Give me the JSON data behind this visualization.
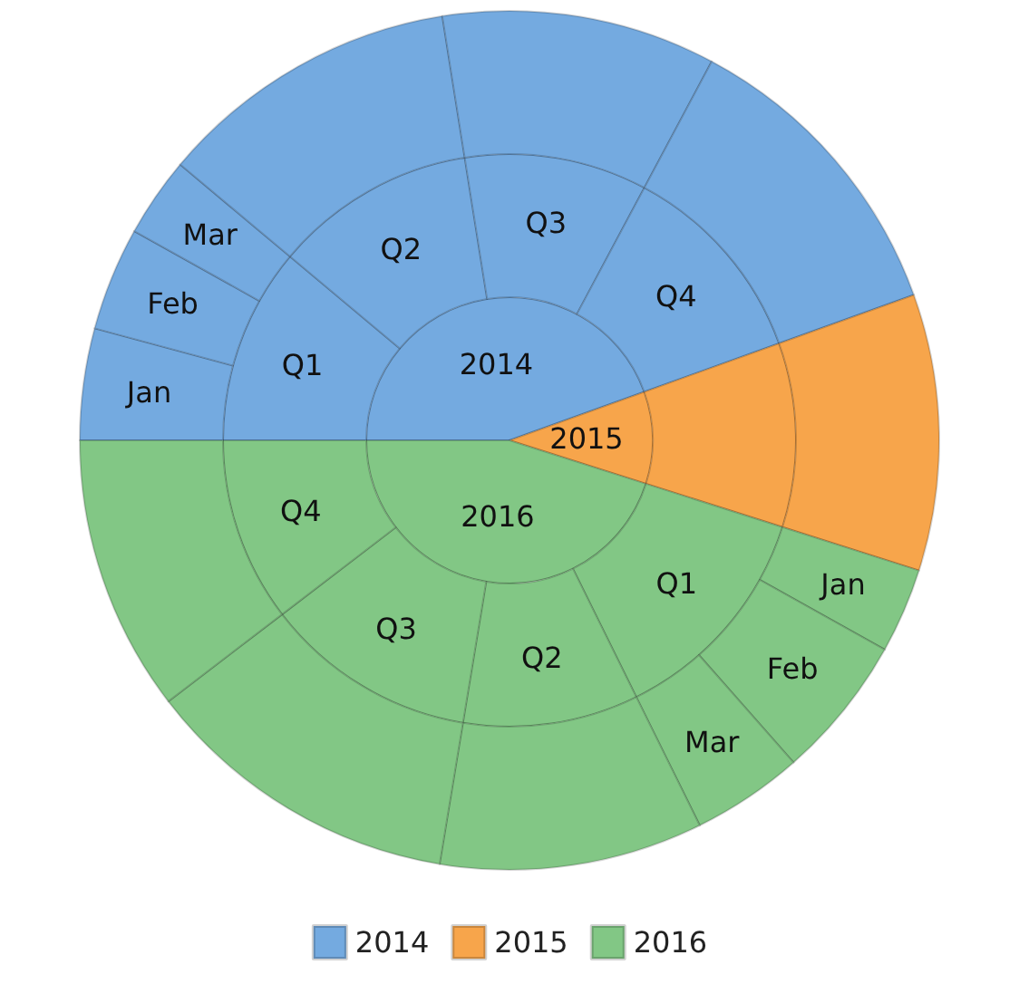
{
  "chart_data": [
    {
      "type": "pie",
      "legend": "bottom",
      "categories": [
        "2014",
        "2015",
        "2016"
      ],
      "values": [
        44.5,
        10.4,
        45.1
      ],
      "colors": [
        "#74aae0",
        "#f7a54b",
        "#82c785"
      ]
    },
    {
      "type": "donut",
      "categories": [
        "Q1",
        "Q2",
        "Q3",
        "Q4",
        null,
        "Q1",
        "Q2",
        "Q3",
        "Q4"
      ],
      "values": [
        11.1,
        11.4,
        10.3,
        11.7,
        10.4,
        12.8,
        9.9,
        12.0,
        10.4
      ],
      "colors": [
        "#74aae0",
        "#74aae0",
        "#74aae0",
        "#74aae0",
        "#f7a54b",
        "#82c785",
        "#82c785",
        "#82c785",
        "#82c785"
      ]
    },
    {
      "type": "donut",
      "categories": [
        "Jan",
        "Feb",
        "Mar",
        null,
        null,
        null,
        null,
        "Jan",
        "Feb",
        "Mar",
        null,
        null,
        null
      ],
      "values": [
        4.2,
        3.9,
        3.0,
        11.4,
        10.3,
        11.7,
        10.4,
        3.2,
        5.4,
        4.2,
        9.9,
        12.0,
        10.4
      ],
      "colors": [
        "#74aae0",
        "#74aae0",
        "#74aae0",
        "#74aae0",
        "#74aae0",
        "#74aae0",
        "#f7a54b",
        "#82c785",
        "#82c785",
        "#82c785",
        "#82c785",
        "#82c785",
        "#82c785"
      ]
    }
  ]
}
